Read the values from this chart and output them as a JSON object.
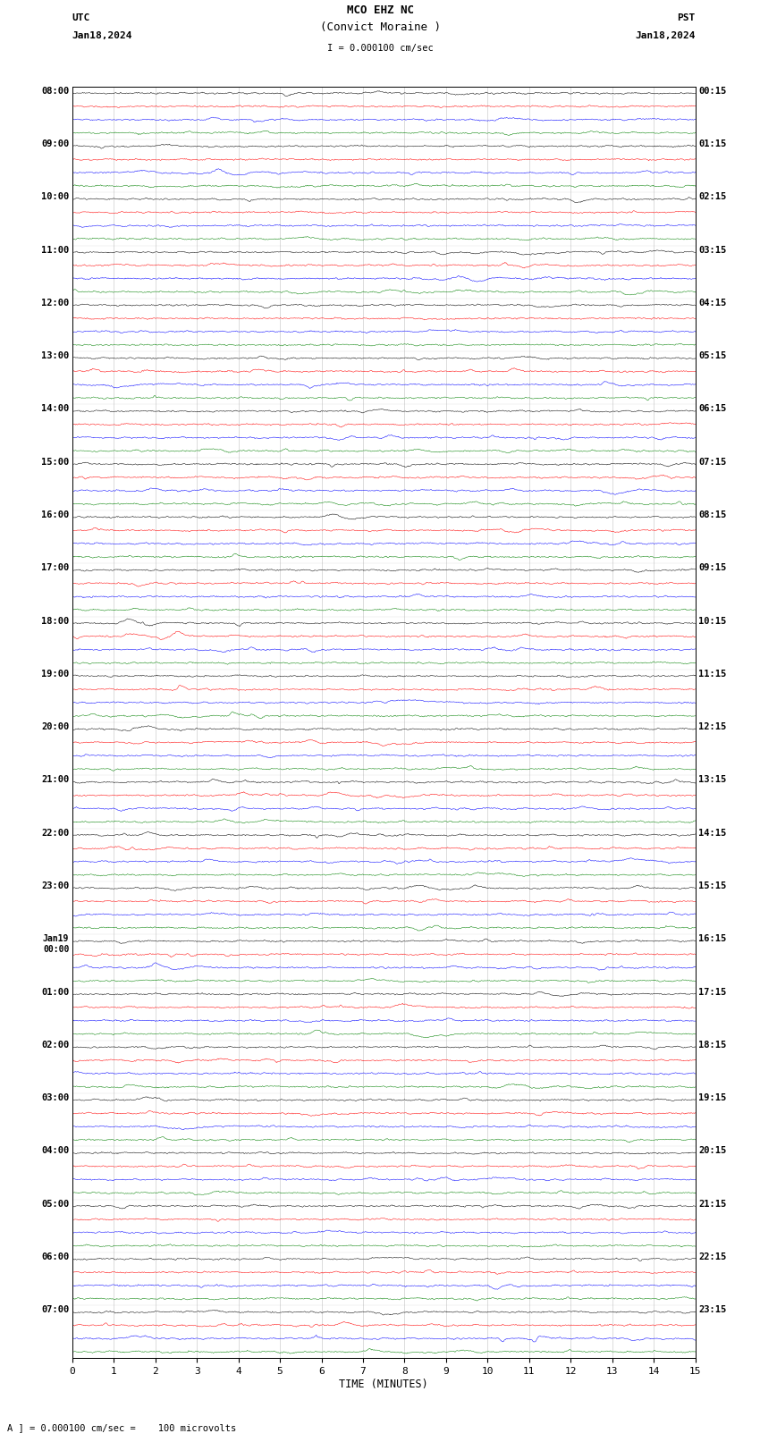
{
  "title_line1": "MCO EHZ NC",
  "title_line2": "(Convict Moraine )",
  "title_scale": "I = 0.000100 cm/sec",
  "xlabel": "TIME (MINUTES)",
  "footer_note": "A ] = 0.000100 cm/sec =    100 microvolts",
  "x_min": 0,
  "x_max": 15,
  "x_ticks": [
    0,
    1,
    2,
    3,
    4,
    5,
    6,
    7,
    8,
    9,
    10,
    11,
    12,
    13,
    14,
    15
  ],
  "left_times": [
    "08:00",
    "09:00",
    "10:00",
    "11:00",
    "12:00",
    "13:00",
    "14:00",
    "15:00",
    "16:00",
    "17:00",
    "18:00",
    "19:00",
    "20:00",
    "21:00",
    "22:00",
    "23:00",
    "Jan19\n00:00",
    "01:00",
    "02:00",
    "03:00",
    "04:00",
    "05:00",
    "06:00",
    "07:00"
  ],
  "right_times": [
    "00:15",
    "01:15",
    "02:15",
    "03:15",
    "04:15",
    "05:15",
    "06:15",
    "07:15",
    "08:15",
    "09:15",
    "10:15",
    "11:15",
    "12:15",
    "13:15",
    "14:15",
    "15:15",
    "16:15",
    "17:15",
    "18:15",
    "19:15",
    "20:15",
    "21:15",
    "22:15",
    "23:15"
  ],
  "colors": [
    "black",
    "red",
    "blue",
    "green"
  ],
  "n_groups": 24,
  "background_color": "white",
  "seed": 42
}
